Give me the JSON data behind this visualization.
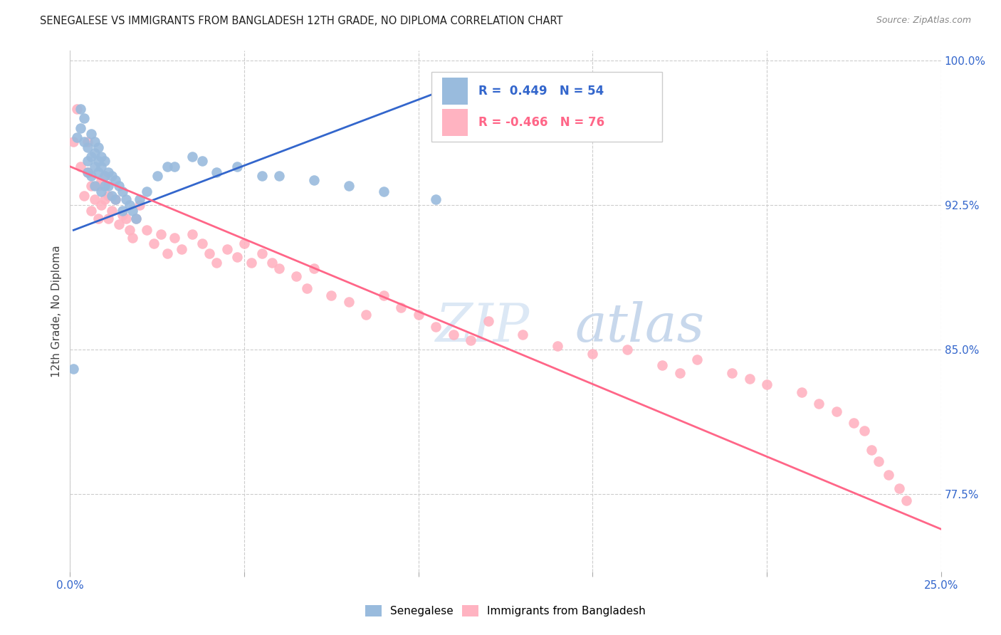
{
  "title": "SENEGALESE VS IMMIGRANTS FROM BANGLADESH 12TH GRADE, NO DIPLOMA CORRELATION CHART",
  "source": "Source: ZipAtlas.com",
  "ylabel_label": "12th Grade, No Diploma",
  "legend_label1": "Senegalese",
  "legend_label2": "Immigrants from Bangladesh",
  "r1": 0.449,
  "n1": 54,
  "r2": -0.466,
  "n2": 76,
  "blue_color": "#99BBDD",
  "pink_color": "#FFB3C1",
  "blue_line_color": "#3366CC",
  "pink_line_color": "#FF6688",
  "watermark_zip": "ZIP",
  "watermark_atlas": "atlas",
  "axis_label_color": "#3366CC",
  "blue_scatter_x": [
    0.001,
    0.002,
    0.003,
    0.003,
    0.004,
    0.004,
    0.005,
    0.005,
    0.005,
    0.006,
    0.006,
    0.006,
    0.007,
    0.007,
    0.007,
    0.007,
    0.008,
    0.008,
    0.008,
    0.009,
    0.009,
    0.009,
    0.01,
    0.01,
    0.01,
    0.011,
    0.011,
    0.012,
    0.012,
    0.013,
    0.013,
    0.014,
    0.015,
    0.015,
    0.016,
    0.017,
    0.018,
    0.019,
    0.02,
    0.022,
    0.025,
    0.028,
    0.03,
    0.035,
    0.038,
    0.042,
    0.048,
    0.055,
    0.06,
    0.07,
    0.08,
    0.09,
    0.105,
    0.118
  ],
  "blue_scatter_y": [
    0.84,
    0.96,
    0.975,
    0.965,
    0.97,
    0.958,
    0.955,
    0.948,
    0.942,
    0.962,
    0.95,
    0.94,
    0.958,
    0.952,
    0.945,
    0.935,
    0.955,
    0.948,
    0.942,
    0.95,
    0.945,
    0.932,
    0.948,
    0.94,
    0.935,
    0.942,
    0.935,
    0.94,
    0.93,
    0.938,
    0.928,
    0.935,
    0.932,
    0.922,
    0.928,
    0.925,
    0.922,
    0.918,
    0.928,
    0.932,
    0.94,
    0.945,
    0.945,
    0.95,
    0.948,
    0.942,
    0.945,
    0.94,
    0.94,
    0.938,
    0.935,
    0.932,
    0.928,
    0.98
  ],
  "pink_scatter_x": [
    0.001,
    0.002,
    0.003,
    0.004,
    0.005,
    0.005,
    0.006,
    0.006,
    0.007,
    0.008,
    0.008,
    0.009,
    0.009,
    0.01,
    0.01,
    0.011,
    0.011,
    0.012,
    0.013,
    0.014,
    0.015,
    0.016,
    0.017,
    0.018,
    0.019,
    0.02,
    0.022,
    0.024,
    0.026,
    0.028,
    0.03,
    0.032,
    0.035,
    0.038,
    0.04,
    0.042,
    0.045,
    0.048,
    0.05,
    0.052,
    0.055,
    0.058,
    0.06,
    0.065,
    0.068,
    0.07,
    0.075,
    0.08,
    0.085,
    0.09,
    0.095,
    0.1,
    0.105,
    0.11,
    0.115,
    0.12,
    0.13,
    0.14,
    0.15,
    0.16,
    0.17,
    0.175,
    0.18,
    0.19,
    0.195,
    0.2,
    0.21,
    0.215,
    0.22,
    0.225,
    0.228,
    0.23,
    0.232,
    0.235,
    0.238,
    0.24
  ],
  "pink_scatter_y": [
    0.958,
    0.975,
    0.945,
    0.93,
    0.958,
    0.942,
    0.935,
    0.922,
    0.928,
    0.935,
    0.918,
    0.938,
    0.925,
    0.94,
    0.928,
    0.93,
    0.918,
    0.922,
    0.928,
    0.915,
    0.92,
    0.918,
    0.912,
    0.908,
    0.918,
    0.925,
    0.912,
    0.905,
    0.91,
    0.9,
    0.908,
    0.902,
    0.91,
    0.905,
    0.9,
    0.895,
    0.902,
    0.898,
    0.905,
    0.895,
    0.9,
    0.895,
    0.892,
    0.888,
    0.882,
    0.892,
    0.878,
    0.875,
    0.868,
    0.878,
    0.872,
    0.868,
    0.862,
    0.858,
    0.855,
    0.865,
    0.858,
    0.852,
    0.848,
    0.85,
    0.842,
    0.838,
    0.845,
    0.838,
    0.835,
    0.832,
    0.828,
    0.822,
    0.818,
    0.812,
    0.808,
    0.798,
    0.792,
    0.785,
    0.778,
    0.772
  ],
  "blue_line_x": [
    0.001,
    0.118
  ],
  "blue_line_y": [
    0.912,
    0.992
  ],
  "pink_line_x": [
    0.0,
    0.25
  ],
  "pink_line_y": [
    0.945,
    0.757
  ],
  "xlim": [
    0.0,
    0.25
  ],
  "ylim": [
    0.735,
    1.005
  ],
  "xticks": [
    0.0,
    0.05,
    0.1,
    0.15,
    0.2,
    0.25
  ],
  "yticks": [
    0.775,
    0.85,
    0.925,
    1.0
  ],
  "yticklabels": [
    "77.5%",
    "85.0%",
    "92.5%",
    "100.0%"
  ]
}
